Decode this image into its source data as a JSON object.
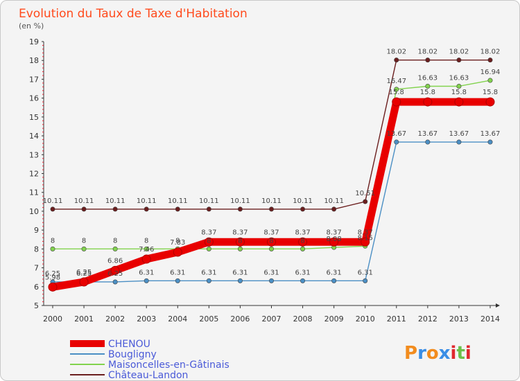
{
  "chart_data": {
    "type": "line",
    "title": "Evolution du Taux de Taxe d'Habitation",
    "ylabel": "(en %)",
    "xlabel": "",
    "categories": [
      "2000",
      "2001",
      "2002",
      "2003",
      "2004",
      "2005",
      "2006",
      "2007",
      "2008",
      "2009",
      "2010",
      "2011",
      "2012",
      "2013",
      "2014"
    ],
    "ylim": [
      5,
      19
    ],
    "yticks": [
      5,
      6,
      7,
      8,
      9,
      10,
      11,
      12,
      13,
      14,
      15,
      16,
      17,
      18,
      19
    ],
    "grid": false,
    "legend": "bottom-left",
    "series": [
      {
        "name": "CHENOU",
        "color": "#e80000",
        "values": [
          5.98,
          6.25,
          6.86,
          7.46,
          7.83,
          8.37,
          8.37,
          8.37,
          8.37,
          8.37,
          8.37,
          15.8,
          15.8,
          15.8,
          15.8
        ]
      },
      {
        "name": "Bougligny",
        "color": "#4b8fc4",
        "values": [
          6.25,
          6.25,
          6.25,
          6.31,
          6.31,
          6.31,
          6.31,
          6.31,
          6.31,
          6.31,
          6.31,
          13.67,
          13.67,
          13.67,
          13.67
        ]
      },
      {
        "name": "Maisoncelles-en-Gâtinais",
        "color": "#82d34e",
        "values": [
          8,
          8,
          8,
          8,
          8,
          8,
          8,
          8,
          8,
          8.08,
          8.15,
          16.47,
          16.63,
          16.63,
          16.94
        ]
      },
      {
        "name": "Château-Landon",
        "color": "#6b1e1e",
        "values": [
          10.11,
          10.11,
          10.11,
          10.11,
          10.11,
          10.11,
          10.11,
          10.11,
          10.11,
          10.11,
          10.51,
          18.02,
          18.02,
          18.02,
          18.02
        ]
      }
    ]
  },
  "logo": {
    "letters": [
      "P",
      "r",
      "o",
      "x",
      "i",
      "t",
      "i"
    ],
    "colors": [
      "#f28c1e",
      "#3a8ee6",
      "#f28c1e",
      "#3a8ee6",
      "#e0282e",
      "#6cc04a",
      "#e0282e"
    ]
  }
}
